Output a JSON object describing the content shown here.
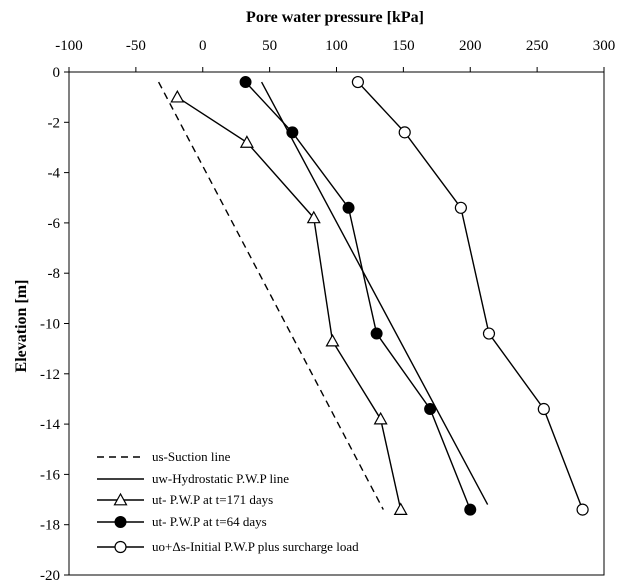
{
  "chart_data": {
    "type": "line",
    "xlabel": "Pore water pressure [kPa]",
    "ylabel": "Elevation [m]",
    "xlim": [
      -100,
      300
    ],
    "ylim": [
      -20,
      0
    ],
    "x_ticks": [
      "-100",
      "-50",
      "0",
      "50",
      "100",
      "150",
      "200",
      "250",
      "300"
    ],
    "y_ticks": [
      "0",
      "-2",
      "-4",
      "-6",
      "-8",
      "-10",
      "-12",
      "-14",
      "-16",
      "-18",
      "-20"
    ],
    "x_axis_position": "top",
    "grid": false,
    "legend_position": "bottom-left",
    "series": [
      {
        "name": "us-Suction line",
        "style": "dashed",
        "marker": "none",
        "x": [
          -33,
          135
        ],
        "y": [
          -0.4,
          -17.4
        ]
      },
      {
        "name": "uw-Hydrostatic P.W.P line",
        "style": "solid",
        "marker": "none",
        "x": [
          44,
          213
        ],
        "y": [
          -0.4,
          -17.2
        ]
      },
      {
        "name": "ut- P.W.P at t=171 days",
        "style": "solid",
        "marker": "open-triangle",
        "x": [
          -19,
          33,
          83,
          97,
          133,
          148
        ],
        "y": [
          -1.0,
          -2.8,
          -5.8,
          -10.7,
          -13.8,
          -17.4
        ]
      },
      {
        "name": "ut- P.W.P at t=64 days",
        "style": "solid",
        "marker": "filled-circle",
        "x": [
          32,
          67,
          109,
          130,
          170,
          200
        ],
        "y": [
          -0.4,
          -2.4,
          -5.4,
          -10.4,
          -13.4,
          -17.4
        ]
      },
      {
        "name": "uo+Δs-Initial P.W.P plus surcharge load",
        "style": "solid",
        "marker": "open-circle",
        "x": [
          116,
          151,
          193,
          214,
          255,
          284
        ],
        "y": [
          -0.4,
          -2.4,
          -5.4,
          -10.4,
          -13.4,
          -17.4
        ]
      }
    ]
  }
}
